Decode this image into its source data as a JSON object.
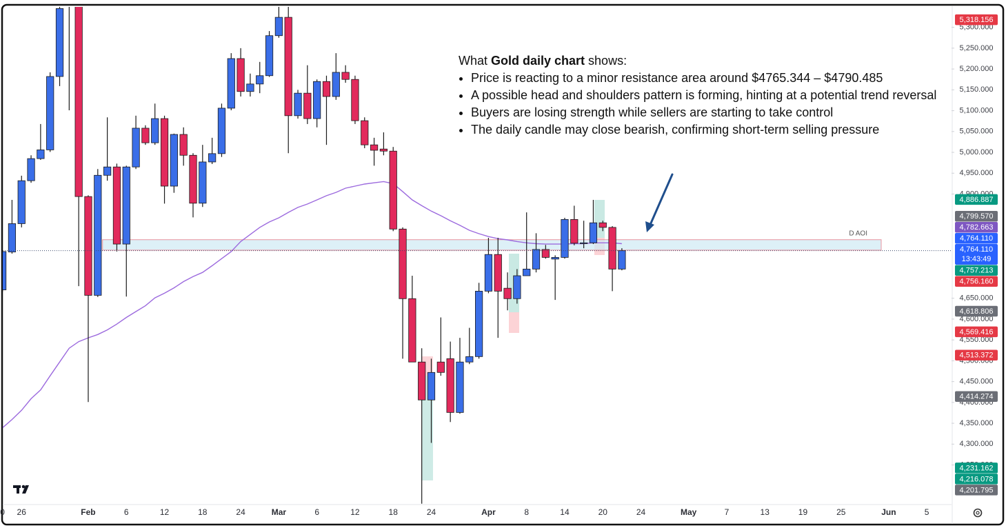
{
  "chart_data": {
    "type": "candlestick",
    "categories": [
      "0",
      null,
      "26",
      null,
      null,
      null,
      null,
      null,
      null,
      "Feb",
      null,
      null,
      null,
      "6",
      null,
      null,
      null,
      "12",
      null,
      null,
      null,
      "18",
      null,
      null,
      null,
      "24",
      null,
      null,
      null,
      "Mar",
      null,
      null,
      null,
      "6",
      null,
      null,
      null,
      "12",
      null,
      null,
      null,
      "18",
      null,
      null,
      null,
      "24",
      null,
      null,
      null,
      null,
      null,
      "Apr",
      null,
      null,
      null,
      "8",
      null,
      null,
      null,
      "14",
      null,
      null,
      null,
      "20",
      null,
      null,
      null,
      "24",
      null,
      null,
      null,
      null,
      "May",
      null,
      null,
      null,
      "7",
      null,
      null,
      null,
      "13",
      null,
      null,
      null,
      "19",
      null,
      null,
      null,
      "25",
      null,
      null,
      null,
      null,
      "Jun",
      null,
      null,
      null,
      "5"
    ],
    "open": [
      4670,
      4761,
      4829,
      4932,
      4985,
      5006,
      5182,
      5365,
      5360,
      4894,
      4657,
      4945,
      4965,
      4780,
      4965,
      5058,
      5023,
      5081,
      4919,
      5043,
      4993,
      4878,
      4977,
      4997,
      5106,
      5225,
      5146,
      5164,
      5184,
      5280,
      5324,
      5088,
      5142,
      5081,
      5170,
      5134,
      5192,
      5175,
      5076,
      5018,
      5008,
      5003,
      4816,
      4649,
      4497,
      4406,
      4497,
      4505,
      4376,
      4497,
      4510,
      4667,
      4755,
      4674,
      4649,
      4704,
      4720,
      4767,
      4744,
      4748,
      4839,
      4781,
      4783,
      4831,
      4820,
      4720,
      null,
      null,
      null,
      null,
      null,
      null,
      null,
      null,
      null,
      null,
      null,
      null,
      null,
      null,
      null,
      null,
      null,
      null,
      null,
      null,
      null,
      null,
      null,
      null,
      null,
      null,
      null,
      null,
      null,
      null,
      null,
      null
    ],
    "high": [
      4765,
      4886,
      4944,
      4993,
      5068,
      5192,
      5360,
      5400,
      5390,
      4897,
      4960,
      5084,
      4973,
      4968,
      5088,
      5065,
      5117,
      5088,
      5045,
      5060,
      4998,
      5018,
      5035,
      5117,
      5238,
      5250,
      5189,
      5217,
      5291,
      5352,
      5349,
      5150,
      5209,
      5175,
      5184,
      5238,
      5209,
      5184,
      5084,
      5035,
      5048,
      5013,
      4820,
      4704,
      4530,
      4505,
      4604,
      4546,
      4555,
      4579,
      4687,
      4795,
      4795,
      4712,
      4720,
      4856,
      4806,
      4778,
      4753,
      4843,
      4872,
      4836,
      4886,
      4836,
      4823,
      4770,
      null,
      null,
      null,
      null,
      null,
      null,
      null,
      null,
      null,
      null,
      null,
      null,
      null,
      null,
      null,
      null,
      null,
      null,
      null,
      null,
      null,
      null,
      null,
      null,
      null,
      null,
      null,
      null,
      null,
      null,
      null,
      null
    ],
    "low": [
      4665,
      4757,
      4820,
      4927,
      4982,
      5001,
      5159,
      5101,
      4679,
      4401,
      4653,
      4932,
      4762,
      4654,
      4960,
      5018,
      5018,
      4877,
      4903,
      4968,
      4844,
      4869,
      4972,
      4989,
      5101,
      5134,
      5134,
      5142,
      5181,
      5275,
      4998,
      5081,
      5068,
      5060,
      5018,
      5126,
      5167,
      5068,
      5010,
      4968,
      4993,
      4811,
      4505,
      4497,
      4157,
      4303,
      4464,
      4353,
      4373,
      4492,
      4505,
      4662,
      4555,
      4621,
      4637,
      4704,
      4712,
      4745,
      4646,
      4745,
      4777,
      4770,
      4780,
      4811,
      4667,
      4717,
      null,
      null,
      null,
      null,
      null,
      null,
      null,
      null,
      null,
      null,
      null,
      null,
      null,
      null,
      null,
      null,
      null,
      null,
      null,
      null,
      null,
      null,
      null,
      null,
      null,
      null,
      null,
      null,
      null,
      null,
      null,
      null
    ],
    "close": [
      4762,
      4829,
      4932,
      4985,
      5006,
      5182,
      5345,
      5355,
      4894,
      4657,
      4945,
      4965,
      4780,
      4965,
      5058,
      5023,
      5081,
      4919,
      5043,
      4993,
      4878,
      4977,
      4997,
      5106,
      5225,
      5146,
      5164,
      5184,
      5280,
      5324,
      5088,
      5142,
      5081,
      5170,
      5134,
      5192,
      5175,
      5076,
      5018,
      5005,
      5003,
      4816,
      4649,
      4497,
      4406,
      4472,
      4472,
      4376,
      4497,
      4510,
      4667,
      4755,
      4667,
      4649,
      4704,
      4720,
      4767,
      4748,
      4748,
      4839,
      4782,
      4783,
      4831,
      4820,
      4720,
      4764.11,
      null,
      null,
      null,
      null,
      null,
      null,
      null,
      null,
      null,
      null,
      null,
      null,
      null,
      null,
      null,
      null,
      null,
      null,
      null,
      null,
      null,
      null,
      null,
      null,
      null,
      null,
      null,
      null,
      null,
      null,
      null,
      null
    ],
    "up_color": "#3a6ee8",
    "down_color": "#e22a5c",
    "ma": {
      "color": "#9c6ade",
      "values": [
        4339,
        4359,
        4381,
        4409,
        4430,
        4464,
        4497,
        4530,
        4546,
        4555,
        4563,
        4574,
        4588,
        4604,
        4618,
        4632,
        4651,
        4662,
        4675,
        4690,
        4702,
        4712,
        4728,
        4745,
        4762,
        4786,
        4803,
        4820,
        4833,
        4843,
        4856,
        4868,
        4876,
        4886,
        4896,
        4904,
        4914,
        4919,
        4924,
        4927,
        4930,
        4925,
        4906,
        4886,
        4872,
        4859,
        4848,
        4836,
        4825,
        4813,
        4805,
        4798,
        4793,
        4790,
        4786,
        4783,
        4781,
        4780,
        4780,
        4780,
        4781,
        4781,
        4783,
        4783,
        4783,
        4781,
        null,
        null,
        null,
        null,
        null,
        null,
        null,
        null,
        null,
        null,
        null,
        null,
        null,
        null,
        null,
        null,
        null,
        null,
        null,
        null,
        null,
        null,
        null,
        null,
        null,
        null,
        null,
        null,
        null,
        null,
        null,
        null
      ]
    },
    "zone": {
      "label": "D AOI",
      "low": 4765.344,
      "high": 4790.485,
      "color": "#cfe9f3",
      "border": "#e8939f"
    },
    "ylim": [
      4155,
      5349
    ],
    "yticks": [
      {
        "value": 4250,
        "label": "4,250.000"
      },
      {
        "value": 4300,
        "label": "4,300.000"
      },
      {
        "value": 4350,
        "label": "4,350.000"
      },
      {
        "value": 4400,
        "label": "4,400.000"
      },
      {
        "value": 4450,
        "label": "4,450.000"
      },
      {
        "value": 4500,
        "label": "4,500.000"
      },
      {
        "value": 4550,
        "label": "4,550.000"
      },
      {
        "value": 4600,
        "label": "4,600.000"
      },
      {
        "value": 4650,
        "label": "4,650.000"
      },
      {
        "value": 4900,
        "label": "4,900.000"
      },
      {
        "value": 4950,
        "label": "4,950.000"
      },
      {
        "value": 5000,
        "label": "5,000.000"
      },
      {
        "value": 5050,
        "label": "5,050.000"
      },
      {
        "value": 5100,
        "label": "5,100.000"
      },
      {
        "value": 5150,
        "label": "5,150.000"
      },
      {
        "value": 5200,
        "label": "5,200.000"
      },
      {
        "value": 5250,
        "label": "5,250.000"
      },
      {
        "value": 5300,
        "label": "5,300.000"
      }
    ],
    "grid": false,
    "price_labels": [
      {
        "value": 5318.156,
        "label": "5,318.156",
        "color": "#e53945"
      },
      {
        "value": 4886.887,
        "label": "4,886.887",
        "color": "#089981"
      },
      {
        "value": 4799.57,
        "label": "4,799.570",
        "color": "#6b6e76"
      },
      {
        "value": 4782.663,
        "label": "4,782.663",
        "color": "#7e57c2"
      },
      {
        "value": 4764.11,
        "label": "4,764.110",
        "color": "#2962ff"
      },
      {
        "value": 4764.11,
        "label": "4,764.110",
        "sublabel": "13:43:49",
        "color": "#2962ff"
      },
      {
        "value": 4757.213,
        "label": "4,757.213",
        "color": "#089981"
      },
      {
        "value": 4756.16,
        "label": "4,756.160",
        "color": "#e53945"
      },
      {
        "value": 4618.806,
        "label": "4,618.806",
        "color": "#6b6e76"
      },
      {
        "value": 4569.416,
        "label": "4,569.416",
        "color": "#e53945"
      },
      {
        "value": 4513.372,
        "label": "4,513.372",
        "color": "#e53945"
      },
      {
        "value": 4414.274,
        "label": "4,414.274",
        "color": "#6b6e76"
      },
      {
        "value": 4231.162,
        "label": "4,231.162",
        "color": "#089981"
      },
      {
        "value": 4216.078,
        "label": "4,216.078",
        "color": "#089981"
      },
      {
        "value": 4201.795,
        "label": "4,201.795",
        "color": "#6b6e76"
      }
    ],
    "annotation": {
      "title_before": "What ",
      "title_bold": "Gold daily chart",
      "title_after": " shows:",
      "bullets": [
        "Price is reacting to a minor resistance area around $4765.344 – $4790.485",
        "A possible head and shoulders pattern is forming, hinting at a potential trend reversal",
        "Buyers are losing strength while sellers are starting to take control",
        "The daily candle may close bearish, confirming short-term selling pressure"
      ]
    }
  }
}
